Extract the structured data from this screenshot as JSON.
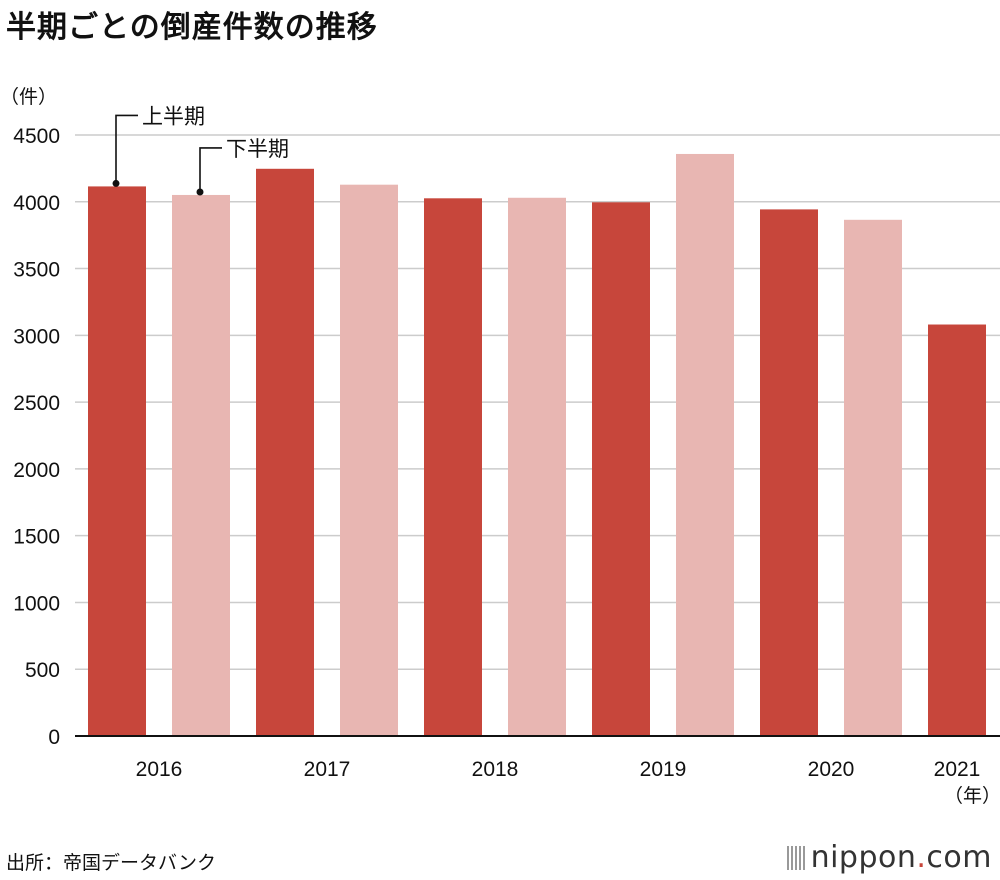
{
  "title": "半期ごとの倒産件数の推移",
  "source": "出所：帝国データバンク",
  "brand": {
    "name": "nippon",
    "dot": ".",
    "tld": "com"
  },
  "colors": {
    "first_half": "#c7463b",
    "second_half": "#e8b6b2",
    "grid": "#cccccc",
    "axis": "#111111"
  },
  "chart_data": {
    "type": "bar",
    "title": "半期ごとの倒産件数の推移",
    "ylabel": "（件）",
    "xlabel": "（年）",
    "ylim": [
      0,
      4500
    ],
    "yticks": [
      0,
      500,
      1000,
      1500,
      2000,
      2500,
      3000,
      3500,
      4000,
      4500
    ],
    "grid": true,
    "categories": [
      "2016",
      "2017",
      "2018",
      "2019",
      "2020",
      "2021"
    ],
    "series": [
      {
        "name": "上半期",
        "values": [
          4115,
          4247,
          4026,
          3996,
          3943,
          3081
        ]
      },
      {
        "name": "下半期",
        "values": [
          4051,
          4128,
          4030,
          4358,
          3865,
          null
        ]
      }
    ]
  }
}
